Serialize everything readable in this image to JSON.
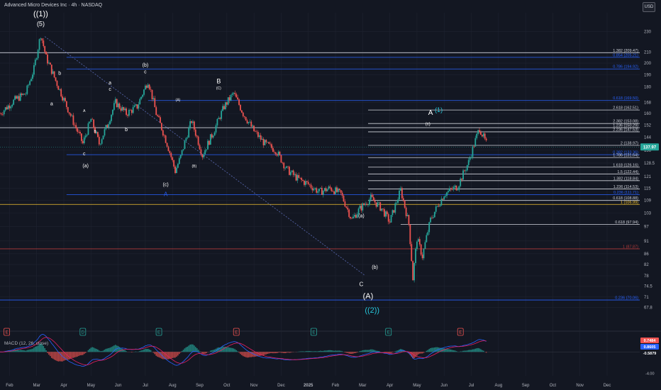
{
  "window": {
    "title": "Advanced Micro Devices Inc · 4h · NASDAQ",
    "currency": "USD",
    "macd_label": "MACD (12, 26, close)"
  },
  "colors": {
    "background": "#131722",
    "grid": "#1f2330",
    "bull": "#26a69a",
    "bear": "#ef5350",
    "fib_white": "#d1d4dc",
    "fib_blue": "#2962ff",
    "fib_yellow": "#f2c230",
    "fib_red": "#b23a3a",
    "macd_line": "#2962ff",
    "signal_line": "#e91e63",
    "wave_teal": "#26c6da"
  },
  "chart_data": {
    "type": "candlestick",
    "symbol": "AMD",
    "timeframe": "4h",
    "y_scale": "log",
    "ylim": [
      62,
      250
    ],
    "y_ticks": [
      230,
      210,
      200,
      190,
      180,
      168,
      160,
      152,
      144,
      136,
      128.5,
      121,
      115,
      109,
      103,
      97,
      91,
      86,
      82,
      78,
      74.5,
      71,
      67.8
    ],
    "x_ticks": [
      "Feb",
      "Mar",
      "Apr",
      "May",
      "Jun",
      "Jul",
      "Aug",
      "Sep",
      "Oct",
      "Nov",
      "Dec",
      "2025",
      "Feb",
      "Mar",
      "Apr",
      "May",
      "Jun",
      "Jul",
      "Aug",
      "Sep",
      "Oct",
      "Nov",
      "Dec"
    ],
    "x_tick_month_index": [
      0,
      1,
      2,
      3,
      4,
      5,
      6,
      7,
      8,
      9,
      10,
      11,
      12,
      13,
      14,
      15,
      16,
      17,
      18,
      19,
      20,
      21,
      22
    ],
    "x_range_months": [
      -0.35,
      23.2
    ],
    "price_path": [
      [
        -0.35,
        160
      ],
      [
        0.2,
        170
      ],
      [
        0.6,
        175
      ],
      [
        0.9,
        195
      ],
      [
        1.15,
        227
      ],
      [
        1.35,
        205
      ],
      [
        1.7,
        185
      ],
      [
        2.0,
        170
      ],
      [
        2.4,
        152
      ],
      [
        2.7,
        140
      ],
      [
        3.0,
        156
      ],
      [
        3.3,
        140
      ],
      [
        3.6,
        152
      ],
      [
        3.9,
        168
      ],
      [
        4.3,
        160
      ],
      [
        4.7,
        165
      ],
      [
        5.1,
        185
      ],
      [
        5.4,
        160
      ],
      [
        5.8,
        140
      ],
      [
        6.1,
        124
      ],
      [
        6.3,
        132
      ],
      [
        6.7,
        155
      ],
      [
        7.1,
        133
      ],
      [
        7.5,
        147
      ],
      [
        7.9,
        165
      ],
      [
        8.25,
        175
      ],
      [
        8.6,
        160
      ],
      [
        9.0,
        148
      ],
      [
        9.4,
        140
      ],
      [
        9.8,
        136
      ],
      [
        10.2,
        125
      ],
      [
        10.6,
        120
      ],
      [
        11.0,
        117
      ],
      [
        11.4,
        113
      ],
      [
        11.8,
        115
      ],
      [
        12.2,
        112
      ],
      [
        12.6,
        100
      ],
      [
        12.9,
        105
      ],
      [
        13.3,
        110
      ],
      [
        13.7,
        105
      ],
      [
        14.0,
        99
      ],
      [
        14.4,
        114
      ],
      [
        14.7,
        98
      ],
      [
        14.85,
        77
      ],
      [
        15.0,
        92
      ],
      [
        15.2,
        85
      ],
      [
        15.5,
        100
      ],
      [
        16.0,
        112
      ],
      [
        16.5,
        116
      ],
      [
        16.9,
        129
      ],
      [
        17.3,
        150
      ],
      [
        17.5,
        142
      ],
      [
        17.6,
        138
      ]
    ],
    "last_price": "137.97",
    "fib_levels": [
      {
        "label": "1.382 (209.47)",
        "price": 209.47,
        "color": "white",
        "x_start": -0.35
      },
      {
        "label": "0.854 (205.21)",
        "price": 205.21,
        "color": "blue",
        "x_start": 2.1
      },
      {
        "label": "0.786 (194.92)",
        "price": 194.92,
        "color": "blue",
        "x_start": 2.1
      },
      {
        "label": "0.618 (169.50)",
        "price": 169.5,
        "color": "blue",
        "x_start": 5.1
      },
      {
        "label": "2.618 (162.51)",
        "price": 162.51,
        "color": "white",
        "x_start": 13.2
      },
      {
        "label": "2.382 (153.08)",
        "price": 153.08,
        "color": "white",
        "x_start": 13.2
      },
      {
        "label": "1.236 (150.29)",
        "price": 150.29,
        "color": "white",
        "x_start": -0.35
      },
      {
        "label": "2.236 (147.53)",
        "price": 147.53,
        "color": "white",
        "x_start": 13.2
      },
      {
        "label": "2 (138.97)",
        "price": 138.97,
        "color": "white",
        "x_start": 13.2
      },
      {
        "label": "0.382 (133.36)",
        "price": 133.36,
        "color": "blue",
        "x_start": 2.1
      },
      {
        "label": "1.786 (131.64)",
        "price": 131.64,
        "color": "white",
        "x_start": 13.2
      },
      {
        "label": "1.618 (126.16)",
        "price": 126.16,
        "color": "white",
        "x_start": 13.2
      },
      {
        "label": "1.5 (122.44)",
        "price": 122.44,
        "color": "white",
        "x_start": 13.2
      },
      {
        "label": "1.382 (118.84)",
        "price": 118.84,
        "color": "white",
        "x_start": 13.2
      },
      {
        "label": "1.236 (114.53)",
        "price": 114.53,
        "color": "white",
        "x_start": 13.2
      },
      {
        "label": "0.236 (111.71)",
        "price": 111.71,
        "color": "blue",
        "x_start": 2.1
      },
      {
        "label": "0.618 (108.88)",
        "price": 108.88,
        "color": "white",
        "x_start": 13.2
      },
      {
        "label": "1 (106.99)",
        "price": 106.99,
        "color": "yellow",
        "x_start": -0.35
      },
      {
        "label": "0.618 (97.94)",
        "price": 97.94,
        "color": "white",
        "x_start": 14.4
      },
      {
        "label": "1 (87.87)",
        "price": 87.87,
        "color": "red",
        "x_start": -0.35
      },
      {
        "label": "0.236 (70.06)",
        "price": 70.06,
        "color": "blue",
        "x_start": -0.35
      }
    ],
    "trendline": {
      "from": [
        1.3,
        225
      ],
      "to": [
        13.1,
        78
      ]
    },
    "wave_labels": [
      {
        "text": "((1))",
        "x": 1.15,
        "price": 246,
        "size": 11,
        "color": "white"
      },
      {
        "text": "(5)",
        "x": 1.15,
        "price": 236,
        "size": 9,
        "color": "white"
      },
      {
        "text": "b",
        "x": 1.85,
        "price": 190,
        "size": 7,
        "color": "white"
      },
      {
        "text": "a",
        "x": 1.55,
        "price": 166,
        "size": 7,
        "color": "white"
      },
      {
        "text": "A",
        "x": 2.75,
        "price": 161,
        "size": 5,
        "color": "white"
      },
      {
        "text": "B",
        "x": 3.15,
        "price": 147,
        "size": 5,
        "color": "white"
      },
      {
        "text": "c",
        "x": 2.75,
        "price": 133,
        "size": 7,
        "color": "white"
      },
      {
        "text": "(a)",
        "x": 2.8,
        "price": 126,
        "size": 7,
        "color": "white"
      },
      {
        "text": "a",
        "x": 3.7,
        "price": 182,
        "size": 7,
        "color": "white"
      },
      {
        "text": "c",
        "x": 3.7,
        "price": 177,
        "size": 7,
        "color": "white"
      },
      {
        "text": "b",
        "x": 4.3,
        "price": 148,
        "size": 7,
        "color": "white"
      },
      {
        "text": "(b)",
        "x": 5.0,
        "price": 197,
        "size": 7,
        "color": "white"
      },
      {
        "text": "c",
        "x": 5.0,
        "price": 191,
        "size": 7,
        "color": "white"
      },
      {
        "text": "(A)",
        "x": 6.2,
        "price": 169,
        "size": 5,
        "color": "white"
      },
      {
        "text": "(B)",
        "x": 6.8,
        "price": 126,
        "size": 5,
        "color": "white"
      },
      {
        "text": "(c)",
        "x": 5.75,
        "price": 116,
        "size": 7,
        "color": "white"
      },
      {
        "text": "A",
        "x": 5.75,
        "price": 111,
        "size": 8,
        "color": "#2962ff"
      },
      {
        "text": "B",
        "x": 7.7,
        "price": 183,
        "size": 9,
        "color": "white"
      },
      {
        "text": "(C)",
        "x": 7.7,
        "price": 178,
        "size": 5,
        "color": "white"
      },
      {
        "text": "(a)",
        "x": 12.95,
        "price": 101,
        "size": 7,
        "color": "white"
      },
      {
        "text": "(b)",
        "x": 13.45,
        "price": 80.5,
        "size": 7,
        "color": "white"
      },
      {
        "text": "C",
        "x": 12.95,
        "price": 74.5,
        "size": 8,
        "color": "white"
      },
      {
        "text": "(A)",
        "x": 13.2,
        "price": 70.5,
        "size": 11,
        "color": "white"
      },
      {
        "text": "((2))",
        "x": 13.35,
        "price": 66.2,
        "size": 11,
        "color": "#26c6da"
      },
      {
        "text": "A",
        "x": 15.5,
        "price": 159,
        "size": 10,
        "color": "white"
      },
      {
        "text": "(1)",
        "x": 15.8,
        "price": 161,
        "size": 9,
        "color": "#26c6da"
      },
      {
        "text": "(c)",
        "x": 15.4,
        "price": 152,
        "size": 6,
        "color": "white"
      }
    ],
    "event_markers": [
      {
        "text": "E",
        "x": -0.1,
        "kind": "earnings-red"
      },
      {
        "text": "D",
        "x": 2.7,
        "kind": "dividend-teal"
      },
      {
        "text": "E",
        "x": 5.5,
        "kind": "earnings-teal"
      },
      {
        "text": "E",
        "x": 8.35,
        "kind": "earnings-red"
      },
      {
        "text": "E",
        "x": 11.2,
        "kind": "earnings-teal"
      },
      {
        "text": "E",
        "x": 13.95,
        "kind": "earnings-teal"
      },
      {
        "text": "E",
        "x": 16.6,
        "kind": "earnings-red"
      }
    ],
    "macd": {
      "ylim": [
        -4.5,
        3.5
      ],
      "y_ticks": [
        -4.0
      ],
      "badges": [
        {
          "label": "0.7484",
          "value": 0.7484,
          "color": "#ef5350"
        },
        {
          "label": "0.8605",
          "value": 0.8605,
          "color": "#2962ff"
        },
        {
          "label": "-0.5879",
          "value": -0.5879,
          "color": "#131722"
        }
      ]
    }
  }
}
